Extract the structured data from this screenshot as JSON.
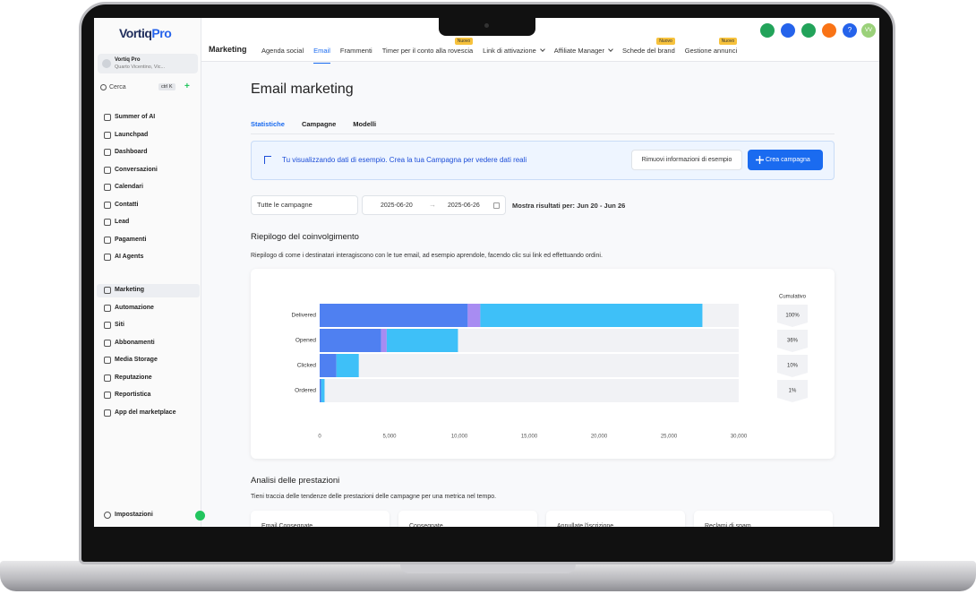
{
  "brand": {
    "name": "Vortiq",
    "suffix": "Pro"
  },
  "account": {
    "name": "Vortiq Pro",
    "location": "Quarto Vicentino, Vic..."
  },
  "search": {
    "placeholder": "Cerca",
    "shortcut": "ctrl K"
  },
  "sidebar": {
    "groups": [
      [
        {
          "label": "Summer of AI"
        },
        {
          "label": "Launchpad"
        },
        {
          "label": "Dashboard"
        },
        {
          "label": "Conversazioni"
        },
        {
          "label": "Calendari"
        },
        {
          "label": "Contatti"
        },
        {
          "label": "Lead"
        },
        {
          "label": "Pagamenti"
        },
        {
          "label": "AI Agents"
        }
      ],
      [
        {
          "label": "Marketing",
          "active": true
        },
        {
          "label": "Automazione"
        },
        {
          "label": "Siti"
        },
        {
          "label": "Abbonamenti"
        },
        {
          "label": "Media Storage"
        },
        {
          "label": "Reputazione"
        },
        {
          "label": "Reportistica"
        },
        {
          "label": "App del marketplace"
        }
      ]
    ],
    "footer": "Impostazioni"
  },
  "topnav": {
    "section": "Marketing",
    "tabs": [
      {
        "label": "Agenda social"
      },
      {
        "label": "Email",
        "active": true
      },
      {
        "label": "Frammenti"
      },
      {
        "label": "Timer per il conto alla rovescia",
        "badge": "Nuovo"
      },
      {
        "label": "Link di attivazione",
        "dropdown": true
      },
      {
        "label": "Affiliate Manager",
        "dropdown": true
      },
      {
        "label": "Schede del brand",
        "badge": "Nuovo"
      },
      {
        "label": "Gestione annunci",
        "badge": "Nuovo"
      }
    ],
    "help": "?",
    "avatar": "VV"
  },
  "page": {
    "title": "Email marketing",
    "subtabs": [
      {
        "label": "Statistiche",
        "active": true
      },
      {
        "label": "Campagne"
      },
      {
        "label": "Modelli"
      }
    ],
    "banner": {
      "text": "Tu visualizzando dati di esempio. Crea la tua Campagna per vedere dati reali",
      "secondary_button": "Rimuovi informazioni di esempio",
      "primary_button": "Crea campagna"
    },
    "filters": {
      "campaign": "Tutte le campagne",
      "start_date": "2025-06-20",
      "end_date": "2025-06-26",
      "range_label": "Mostra risultati per: Jun 20 - Jun 26"
    },
    "engagement": {
      "title": "Riepilogo del coinvolgimento",
      "description": "Riepilogo di come i destinatari interagiscono con le tue email, ad esempio aprendole, facendo clic sui link ed effettuando ordini."
    },
    "performance": {
      "title": "Analisi delle prestazioni",
      "description": "Tieni traccia delle tendenze delle prestazioni delle campagne per una metrica nel tempo.",
      "cards": [
        "Email Consegnate",
        "Consegnate",
        "Annullate l'iscrizione",
        "Reclami di spam"
      ]
    }
  },
  "chart_data": {
    "type": "bar",
    "orientation": "horizontal",
    "stacked": true,
    "categories": [
      "Delivered",
      "Opened",
      "Clicked",
      "Ordered"
    ],
    "series": [
      {
        "color": "#4f80f1",
        "values": [
          10600,
          4400,
          1200,
          100
        ]
      },
      {
        "color": "#a88cf2",
        "values": [
          900,
          400,
          0,
          0
        ]
      },
      {
        "color": "#3ec0f8",
        "values": [
          15900,
          5100,
          1600,
          250
        ]
      }
    ],
    "xlim": [
      0,
      30000
    ],
    "xticks": [
      0,
      {
        "value": 5000,
        "label": "5,000"
      },
      {
        "value": 10000,
        "label": "10,000"
      },
      {
        "value": 15000,
        "label": "15,000"
      },
      {
        "value": 20000,
        "label": "20,000"
      },
      {
        "value": 25000,
        "label": "25,000"
      },
      {
        "value": 30000,
        "label": "30,000"
      }
    ],
    "cumulative": {
      "title": "Cumulativo",
      "labels": [
        "100%",
        "36%",
        "10%",
        "1%"
      ]
    }
  }
}
